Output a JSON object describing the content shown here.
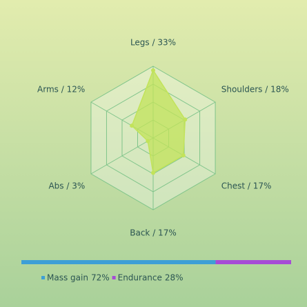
{
  "chart_data": [
    {
      "type": "radar",
      "categories": [
        "Legs / 33%",
        "Shoulders / 18%",
        "Chest / 17%",
        "Back / 17%",
        "Abs / 3%",
        "Arms / 12%"
      ],
      "values": [
        33,
        18,
        17,
        17,
        3,
        12
      ],
      "color": "#c2e35a",
      "rlim": [
        0,
        35
      ],
      "rticks": [
        8.75,
        17.5,
        26.25,
        35
      ],
      "grid": true
    },
    {
      "type": "stacked-bar",
      "series": [
        {
          "name": "Mass gain",
          "color": "#3d9fd6",
          "values": [
            72
          ],
          "value_labels": [
            "72%"
          ]
        },
        {
          "name": "Endurance",
          "color": "#a64bd6",
          "values": [
            28
          ],
          "value_labels": [
            "28%"
          ]
        }
      ],
      "xlim": [
        0,
        100
      ]
    }
  ]
}
